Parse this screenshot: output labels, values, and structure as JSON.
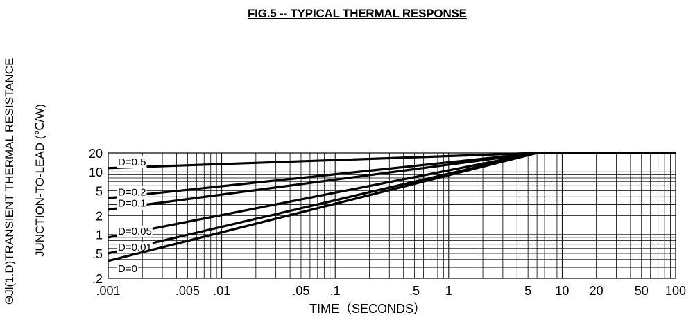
{
  "chart_data": {
    "type": "line",
    "title": "FIG.5 -- TYPICAL THERMAL RESPONSE",
    "ylabel_line1": "ΘJl(1.D)TRANSIENT THERMAL RESISTANCE",
    "ylabel_line2": "JUNCTION-TO-LEAD (℃/W)",
    "xlabel": "TIME（SECONDS）",
    "x_scale": "log",
    "y_scale": "log",
    "xlim": [
      0.001,
      100
    ],
    "ylim": [
      0.2,
      20
    ],
    "x_ticks": [
      {
        "label": ".001",
        "value": 0.001
      },
      {
        "label": ".005",
        "value": 0.005
      },
      {
        "label": ".01",
        "value": 0.01
      },
      {
        "label": ".05",
        "value": 0.05
      },
      {
        "label": ".1",
        "value": 0.1
      },
      {
        "label": ".5",
        "value": 0.5
      },
      {
        "label": "1",
        "value": 1
      },
      {
        "label": "5",
        "value": 5
      },
      {
        "label": "10",
        "value": 10
      },
      {
        "label": "20",
        "value": 20
      },
      {
        "label": "50",
        "value": 50
      },
      {
        "label": "100",
        "value": 100
      }
    ],
    "y_ticks": [
      {
        "label": "20",
        "value": 20
      },
      {
        "label": "10",
        "value": 10
      },
      {
        "label": "5",
        "value": 5
      },
      {
        "label": "2",
        "value": 2
      },
      {
        "label": "1",
        "value": 1
      },
      {
        "label": ".5",
        "value": 0.5
      },
      {
        "label": ".2",
        "value": 0.2
      }
    ],
    "grid": true,
    "series": [
      {
        "name": "D=0.5",
        "x": [
          0.001,
          6,
          100
        ],
        "y": [
          11.5,
          20,
          20
        ]
      },
      {
        "name": "D=0.2",
        "x": [
          0.001,
          6,
          100
        ],
        "y": [
          3.8,
          20,
          20
        ]
      },
      {
        "name": "D=0.1",
        "x": [
          0.001,
          6,
          100
        ],
        "y": [
          2.5,
          20,
          20
        ]
      },
      {
        "name": "D=0.05",
        "x": [
          0.001,
          6,
          100
        ],
        "y": [
          0.9,
          20,
          20
        ]
      },
      {
        "name": "D=0.01",
        "x": [
          0.001,
          6,
          100
        ],
        "y": [
          0.5,
          20,
          20
        ]
      },
      {
        "name": "D=0",
        "x": [
          0.001,
          6,
          100
        ],
        "y": [
          0.38,
          20,
          20
        ]
      }
    ],
    "colors": {
      "line": "#000000",
      "grid": "#000000",
      "background": "#ffffff"
    }
  }
}
